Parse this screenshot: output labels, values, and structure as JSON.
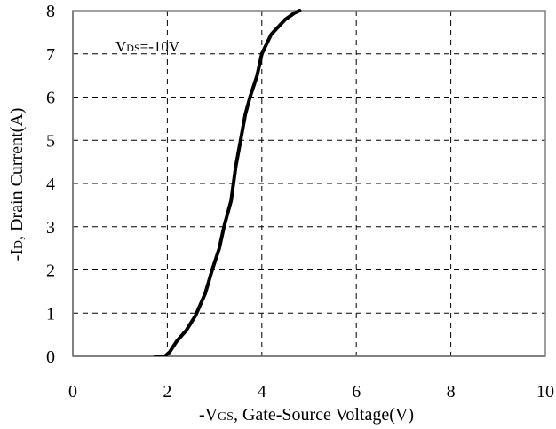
{
  "chart_data": {
    "type": "line",
    "xlabel": {
      "prefix": "-V",
      "sub": "GS",
      "suffix": ", Gate-Source Voltage(V)"
    },
    "ylabel": {
      "prefix": "-I",
      "sub": "D",
      "suffix": ", Drain Current(A)"
    },
    "annotation": {
      "prefix": "V",
      "sub": "DS",
      "suffix": "=-10V"
    },
    "xlim": [
      0,
      10
    ],
    "ylim": [
      0,
      8
    ],
    "x_ticks": [
      0,
      2,
      4,
      6,
      8,
      10
    ],
    "y_ticks": [
      0,
      1,
      2,
      3,
      4,
      5,
      6,
      7,
      8
    ],
    "grid": true,
    "series": [
      {
        "color": "#000000",
        "points": [
          [
            1.75,
            0.0
          ],
          [
            1.95,
            0.0
          ],
          [
            2.05,
            0.1
          ],
          [
            2.2,
            0.35
          ],
          [
            2.4,
            0.6
          ],
          [
            2.6,
            0.95
          ],
          [
            2.8,
            1.45
          ],
          [
            2.95,
            2.0
          ],
          [
            3.1,
            2.5
          ],
          [
            3.2,
            3.0
          ],
          [
            3.35,
            3.6
          ],
          [
            3.45,
            4.4
          ],
          [
            3.55,
            5.0
          ],
          [
            3.65,
            5.6
          ],
          [
            3.75,
            6.0
          ],
          [
            3.9,
            6.5
          ],
          [
            4.0,
            7.0
          ],
          [
            4.2,
            7.45
          ],
          [
            4.5,
            7.8
          ],
          [
            4.7,
            7.95
          ],
          [
            4.8,
            8.0
          ]
        ]
      }
    ]
  }
}
